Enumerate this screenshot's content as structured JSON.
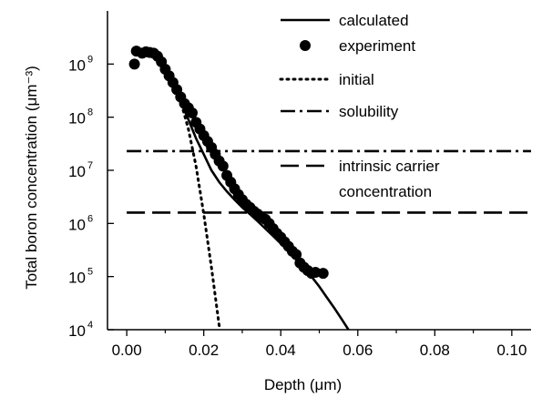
{
  "chart_data": {
    "type": "line",
    "xlabel": "Depth (μm)",
    "ylabel": "Total boron concentration (μm⁻³)",
    "xlim": [
      -0.005,
      0.105
    ],
    "ylim_exp": [
      4,
      10
    ],
    "y_scale": "log",
    "grid": false,
    "legend_position": "top-right",
    "x_ticks": [
      {
        "value": 0.0,
        "label": "0.00"
      },
      {
        "value": 0.02,
        "label": "0.02"
      },
      {
        "value": 0.04,
        "label": "0.04"
      },
      {
        "value": 0.06,
        "label": "0.06"
      },
      {
        "value": 0.08,
        "label": "0.08"
      },
      {
        "value": 0.1,
        "label": "0.10"
      }
    ],
    "y_ticks": [
      {
        "exp": 4,
        "base": "10",
        "sup": "4"
      },
      {
        "exp": 5,
        "base": "10",
        "sup": "5"
      },
      {
        "exp": 6,
        "base": "10",
        "sup": "6"
      },
      {
        "exp": 7,
        "base": "10",
        "sup": "7"
      },
      {
        "exp": 8,
        "base": "10",
        "sup": "8"
      },
      {
        "exp": 9,
        "base": "10",
        "sup": "9"
      }
    ],
    "series": [
      {
        "name": "calculated",
        "style": "solid",
        "color": "#000000",
        "x": [
          0.002,
          0.004,
          0.006,
          0.008,
          0.01,
          0.012,
          0.014,
          0.016,
          0.018,
          0.02,
          0.022,
          0.024,
          0.026,
          0.028,
          0.03,
          0.032,
          0.034,
          0.036,
          0.038,
          0.04,
          0.042,
          0.044,
          0.046,
          0.048,
          0.05,
          0.052,
          0.054,
          0.056,
          0.058
        ],
        "y": [
          1700000000.0,
          1750000000.0,
          1600000000.0,
          1200000000.0,
          700000000.0,
          400000000.0,
          200000000.0,
          90000000.0,
          40000000.0,
          20000000.0,
          10000000.0,
          6000000.0,
          4000000.0,
          2800000.0,
          2000000.0,
          1500000.0,
          1100000.0,
          800000.0,
          580000.0,
          420000.0,
          300000.0,
          210000.0,
          145000.0,
          100000.0,
          65000.0,
          40000.0,
          25000.0,
          15000.0,
          9000.0
        ]
      },
      {
        "name": "experiment",
        "style": "markers",
        "color": "#000000",
        "x": [
          0.002,
          0.0025,
          0.004,
          0.005,
          0.006,
          0.007,
          0.008,
          0.009,
          0.01,
          0.011,
          0.012,
          0.013,
          0.014,
          0.015,
          0.016,
          0.017,
          0.018,
          0.019,
          0.02,
          0.021,
          0.022,
          0.023,
          0.024,
          0.025,
          0.026,
          0.027,
          0.028,
          0.029,
          0.03,
          0.031,
          0.032,
          0.033,
          0.034,
          0.035,
          0.036,
          0.037,
          0.038,
          0.039,
          0.04,
          0.041,
          0.042,
          0.043,
          0.044,
          0.045,
          0.046,
          0.047,
          0.048,
          0.049,
          0.051
        ],
        "y": [
          1000000000.0,
          1750000000.0,
          1600000000.0,
          1700000000.0,
          1650000000.0,
          1600000000.0,
          1400000000.0,
          1100000000.0,
          800000000.0,
          600000000.0,
          450000000.0,
          330000000.0,
          240000000.0,
          180000000.0,
          150000000.0,
          120000000.0,
          80000000.0,
          60000000.0,
          45000000.0,
          35000000.0,
          27000000.0,
          20000000.0,
          15000000.0,
          12000000.0,
          8000000.0,
          6000000.0,
          4500000.0,
          3500000.0,
          2800000.0,
          2300000.0,
          2000000.0,
          1700000.0,
          1500000.0,
          1300000.0,
          1200000.0,
          1000000.0,
          800000.0,
          650000.0,
          550000.0,
          450000.0,
          370000.0,
          300000.0,
          260000.0,
          180000.0,
          150000.0,
          130000.0,
          115000.0,
          120000.0,
          115000.0
        ]
      },
      {
        "name": "initial",
        "style": "dotted",
        "color": "#000000",
        "x": [
          0.012,
          0.014,
          0.016,
          0.018,
          0.02,
          0.022,
          0.024,
          0.0245
        ],
        "y": [
          500000000.0,
          200000000.0,
          60000000.0,
          12000000.0,
          1500000.0,
          150000.0,
          12000.0,
          10000.0
        ]
      },
      {
        "name": "solubility",
        "style": "dashdot",
        "color": "#000000",
        "x": [
          0.0,
          0.105
        ],
        "y": [
          23000000.0,
          23000000.0
        ]
      },
      {
        "name": "intrinsic carrier concentration",
        "style": "dashed",
        "color": "#000000",
        "x": [
          0.0,
          0.105
        ],
        "y": [
          1600000.0,
          1600000.0
        ]
      }
    ],
    "legend": [
      {
        "label": "calculated",
        "style": "solid"
      },
      {
        "label": "experiment",
        "style": "markers"
      },
      {
        "label": "initial",
        "style": "dotted"
      },
      {
        "label": "solubility",
        "style": "dashdot"
      },
      {
        "label_line1": "intrinsic carrier",
        "label_line2": "concentration",
        "style": "dashed"
      }
    ]
  }
}
